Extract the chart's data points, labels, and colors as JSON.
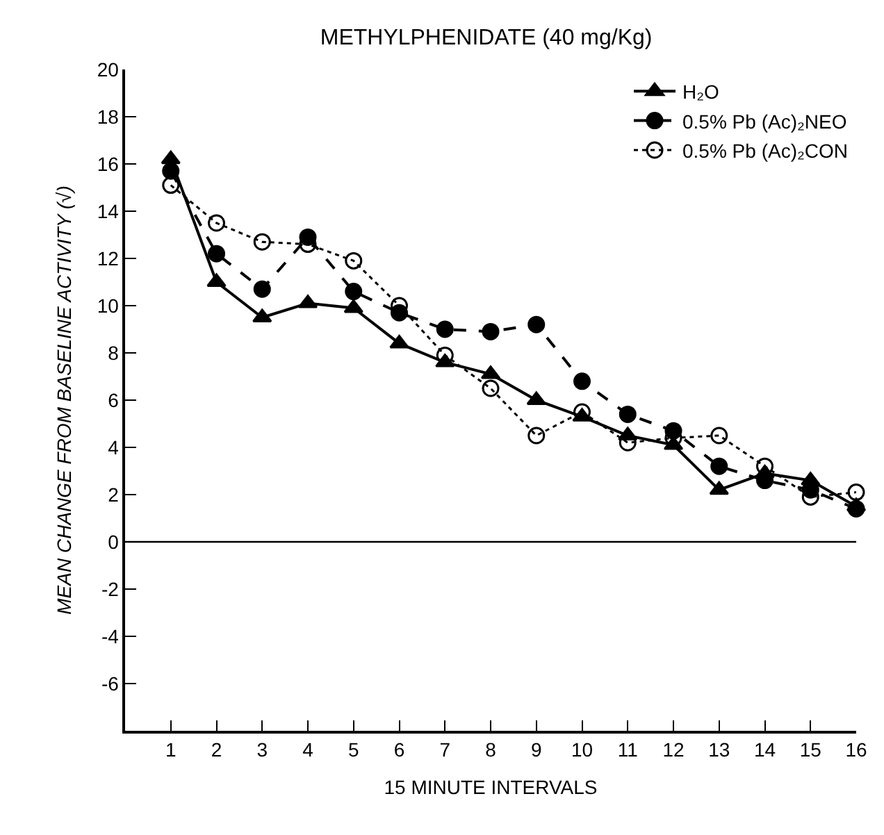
{
  "chart_data": {
    "type": "line",
    "title": "METHYLPHENIDATE (40 mg/Kg)",
    "xlabel": "15 MINUTE INTERVALS",
    "ylabel": "MEAN CHANGE FROM BASELINE ACTIVITY (√)",
    "x": [
      1,
      2,
      3,
      4,
      5,
      6,
      7,
      8,
      9,
      10,
      11,
      12,
      13,
      14,
      15,
      16
    ],
    "series": [
      {
        "name": "H₂O",
        "color": "#000000",
        "marker": "triangle",
        "line_style": "solid",
        "values": [
          16.2,
          11.0,
          9.5,
          10.1,
          9.9,
          8.4,
          7.6,
          7.1,
          6.0,
          5.3,
          4.5,
          4.1,
          2.2,
          2.9,
          2.6,
          1.5
        ]
      },
      {
        "name": "0.5% Pb (Ac)₂NEO",
        "color": "#000000",
        "marker": "circle",
        "line_style": "dashed",
        "values": [
          15.7,
          12.2,
          10.7,
          12.9,
          10.6,
          9.7,
          9.0,
          8.9,
          9.2,
          6.8,
          5.4,
          4.7,
          3.2,
          2.6,
          2.2,
          1.4
        ]
      },
      {
        "name": "0.5% Pb (Ac)₂CON",
        "color": "#000000",
        "marker": "circle-open",
        "line_style": "dotted",
        "values": [
          15.1,
          13.5,
          12.7,
          12.6,
          11.9,
          10.0,
          7.9,
          6.5,
          4.5,
          5.5,
          4.2,
          4.4,
          4.5,
          3.2,
          1.9,
          2.1
        ]
      }
    ],
    "xlim": [
      0,
      16
    ],
    "xticks": [
      1,
      2,
      3,
      4,
      5,
      6,
      7,
      8,
      9,
      10,
      11,
      12,
      13,
      14,
      15,
      16
    ],
    "ylim": [
      -8,
      20
    ],
    "yticks": [
      {
        "value": -8,
        "label": null
      },
      -6,
      -4,
      -2,
      0,
      2,
      4,
      6,
      8,
      10,
      12,
      14,
      16,
      18,
      20
    ],
    "ref_lines": [
      {
        "axis": "y",
        "value": 0,
        "label": null,
        "color": "#000000",
        "line_style": "solid"
      }
    ],
    "grid": false,
    "legend": "top right"
  }
}
